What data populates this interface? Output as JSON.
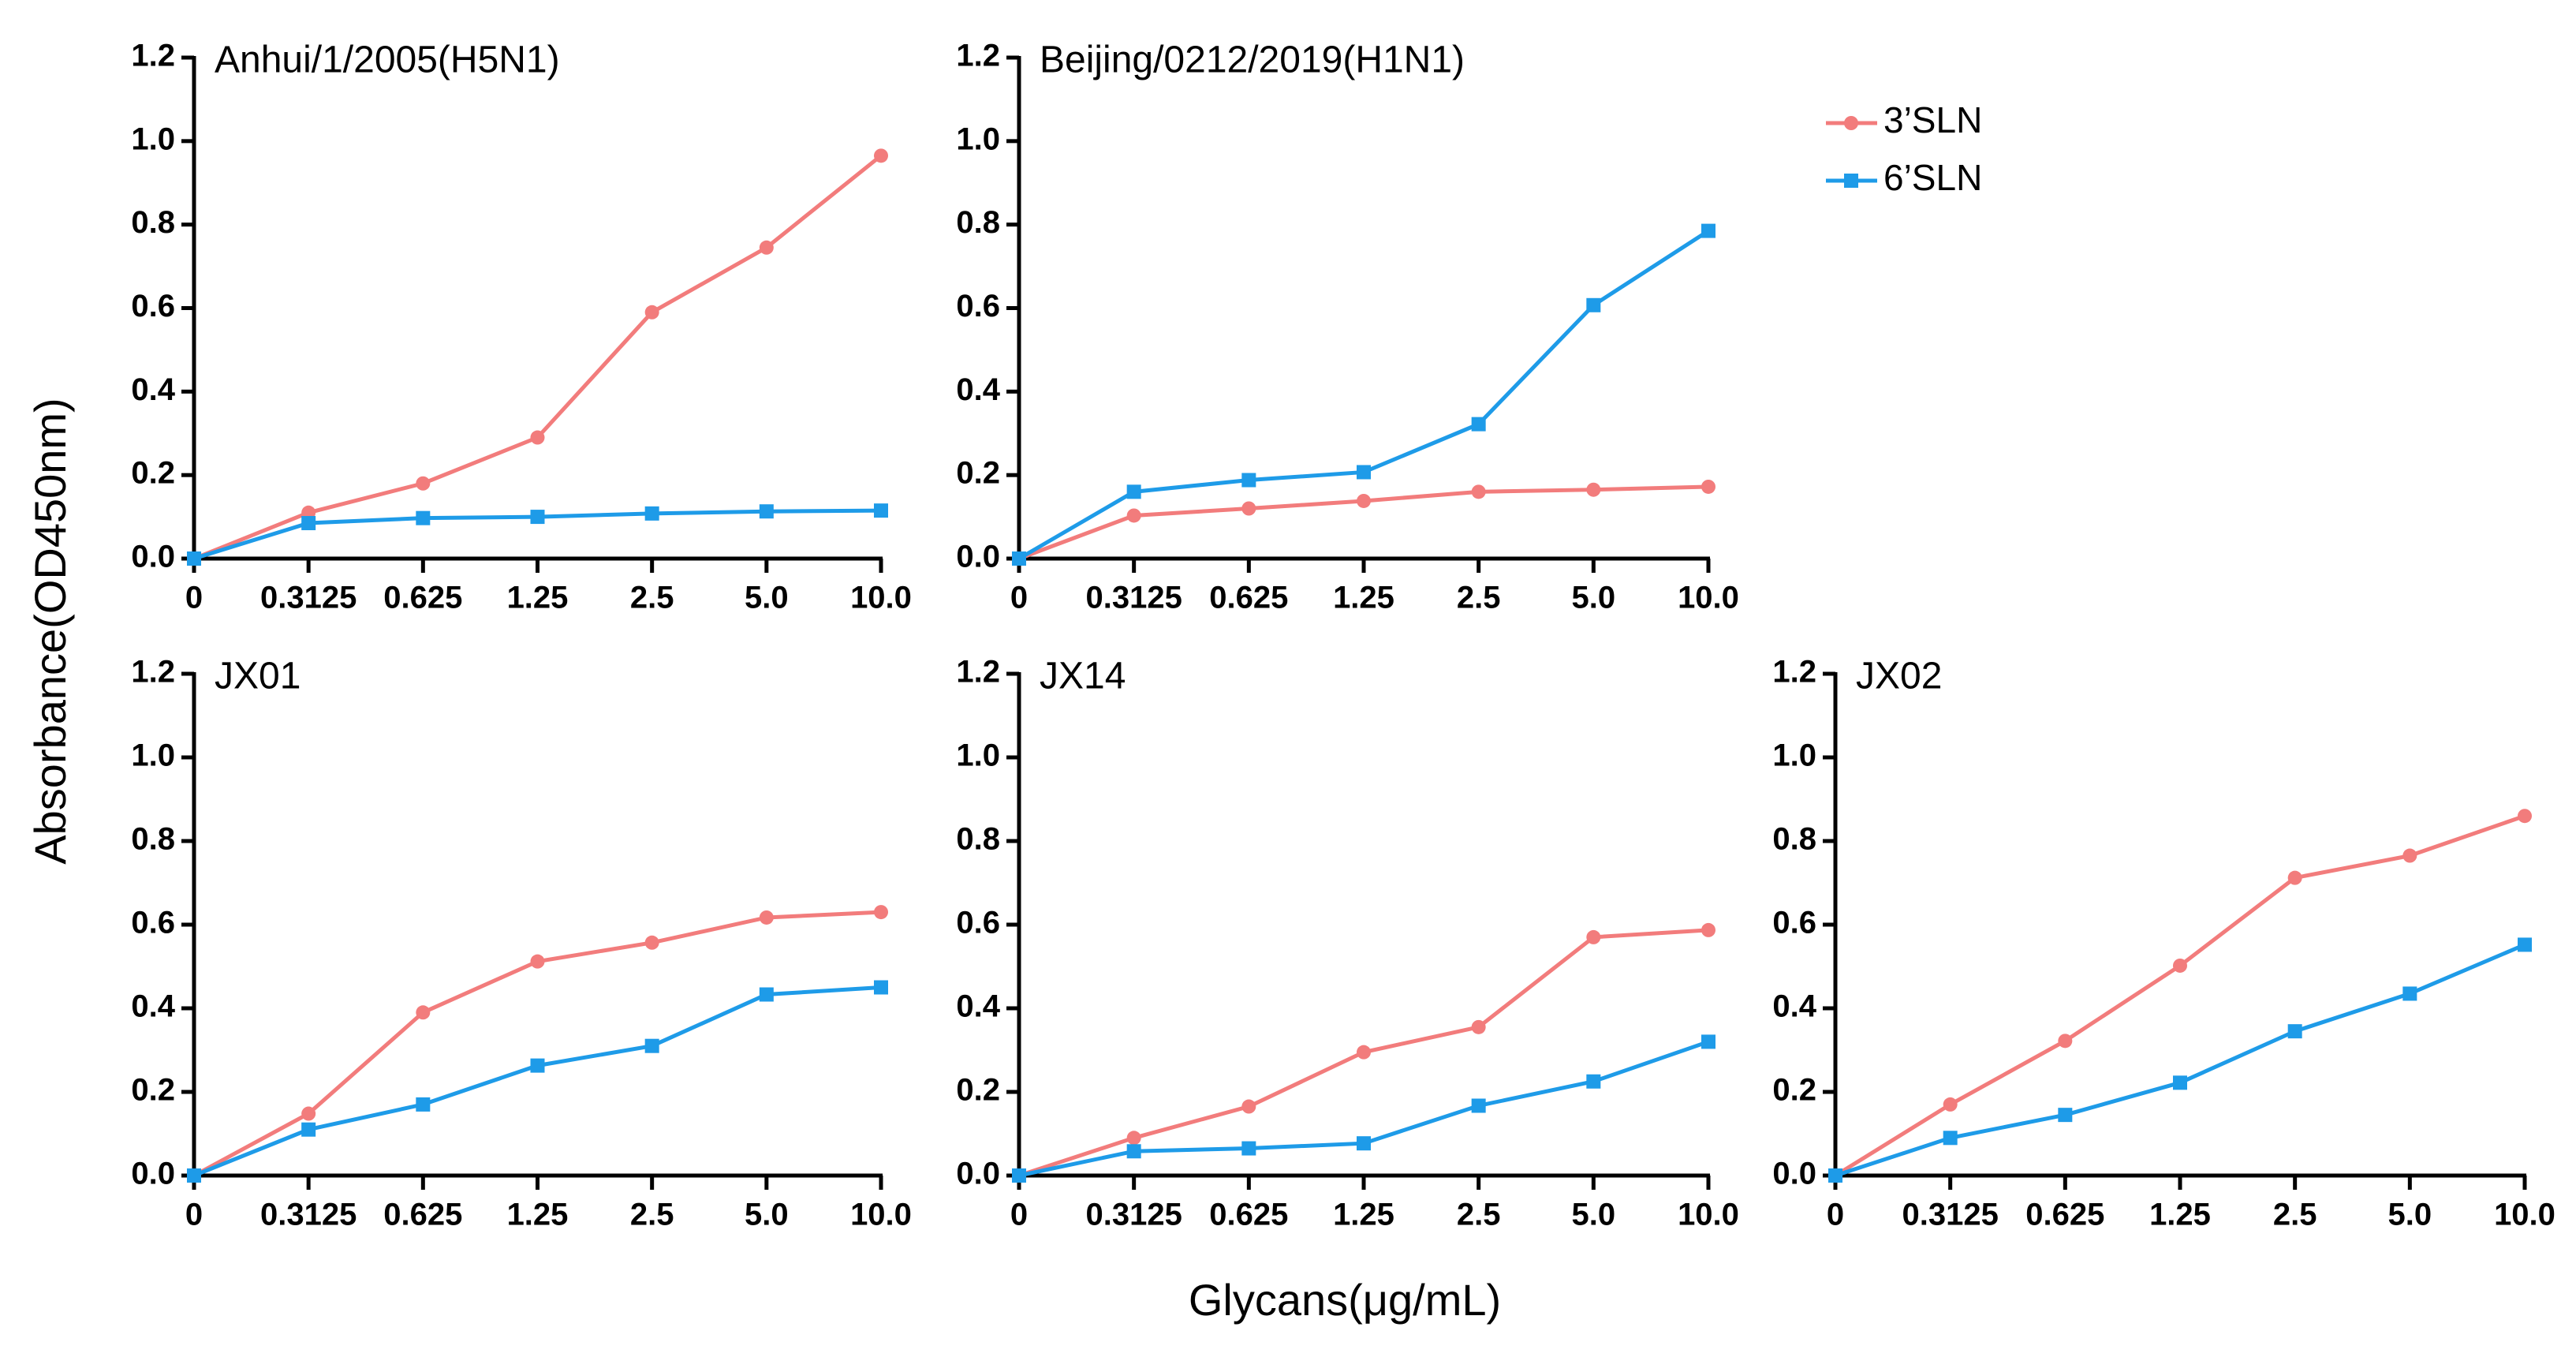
{
  "axis_titles": {
    "y": "Absorbance(OD450nm)",
    "x": "Glycans(μg/mL)"
  },
  "chart_data": [
    {
      "type": "line",
      "title": "Anhui/1/2005(H5N1)",
      "categories": [
        "0",
        "0.3125",
        "0.625",
        "1.25",
        "2.5",
        "5.0",
        "10.0"
      ],
      "series": [
        {
          "name": "3’SLN",
          "color": "#f27c7c",
          "marker": "circle",
          "values": [
            0,
            0.11,
            0.18,
            0.29,
            0.59,
            0.745,
            0.965
          ]
        },
        {
          "name": "6’SLN",
          "color": "#1e9be8",
          "marker": "square",
          "values": [
            0,
            0.085,
            0.097,
            0.1,
            0.108,
            0.113,
            0.115
          ]
        }
      ],
      "ylim": [
        0,
        1.2
      ],
      "yticks": [
        {
          "value": 0,
          "label": "0.0"
        },
        0.2,
        0.4,
        0.6,
        0.8,
        {
          "value": 1,
          "label": "1.0"
        },
        1.2
      ]
    },
    {
      "type": "line",
      "title": "Beijing/0212/2019(H1N1)",
      "categories": [
        "0",
        "0.3125",
        "0.625",
        "1.25",
        "2.5",
        "5.0",
        "10.0"
      ],
      "series": [
        {
          "name": "3’SLN",
          "color": "#f27c7c",
          "marker": "circle",
          "values": [
            0,
            0.103,
            0.12,
            0.138,
            0.16,
            0.165,
            0.172
          ]
        },
        {
          "name": "6’SLN",
          "color": "#1e9be8",
          "marker": "square",
          "values": [
            0,
            0.16,
            0.188,
            0.207,
            0.322,
            0.607,
            0.785
          ]
        }
      ],
      "ylim": [
        0,
        1.2
      ],
      "yticks": [
        {
          "value": 0,
          "label": "0.0"
        },
        0.2,
        0.4,
        0.6,
        0.8,
        {
          "value": 1,
          "label": "1.0"
        },
        1.2
      ]
    },
    {
      "type": "line",
      "title": "JX01",
      "categories": [
        "0",
        "0.3125",
        "0.625",
        "1.25",
        "2.5",
        "5.0",
        "10.0"
      ],
      "series": [
        {
          "name": "3’SLN",
          "color": "#f27c7c",
          "marker": "circle",
          "values": [
            0,
            0.148,
            0.39,
            0.512,
            0.557,
            0.617,
            0.63
          ]
        },
        {
          "name": "6’SLN",
          "color": "#1e9be8",
          "marker": "square",
          "values": [
            0,
            0.11,
            0.17,
            0.263,
            0.31,
            0.433,
            0.45
          ]
        }
      ],
      "ylim": [
        0,
        1.2
      ],
      "yticks": [
        {
          "value": 0,
          "label": "0.0"
        },
        0.2,
        0.4,
        0.6,
        0.8,
        {
          "value": 1,
          "label": "1.0"
        },
        1.2
      ]
    },
    {
      "type": "line",
      "title": "JX14",
      "categories": [
        "0",
        "0.3125",
        "0.625",
        "1.25",
        "2.5",
        "5.0",
        "10.0"
      ],
      "series": [
        {
          "name": "3’SLN",
          "color": "#f27c7c",
          "marker": "circle",
          "values": [
            0,
            0.09,
            0.165,
            0.295,
            0.355,
            0.57,
            0.587
          ]
        },
        {
          "name": "6’SLN",
          "color": "#1e9be8",
          "marker": "square",
          "values": [
            0,
            0.058,
            0.065,
            0.077,
            0.167,
            0.225,
            0.32
          ]
        }
      ],
      "ylim": [
        0,
        1.2
      ],
      "yticks": [
        {
          "value": 0,
          "label": "0.0"
        },
        0.2,
        0.4,
        0.6,
        0.8,
        {
          "value": 1,
          "label": "1.0"
        },
        1.2
      ]
    },
    {
      "type": "line",
      "title": "JX02",
      "categories": [
        "0",
        "0.3125",
        "0.625",
        "1.25",
        "2.5",
        "5.0",
        "10.0"
      ],
      "series": [
        {
          "name": "3’SLN",
          "color": "#f27c7c",
          "marker": "circle",
          "values": [
            0,
            0.17,
            0.322,
            0.502,
            0.712,
            0.765,
            0.86
          ]
        },
        {
          "name": "6’SLN",
          "color": "#1e9be8",
          "marker": "square",
          "values": [
            0,
            0.09,
            0.145,
            0.222,
            0.345,
            0.435,
            0.552
          ]
        }
      ],
      "ylim": [
        0,
        1.2
      ],
      "yticks": [
        {
          "value": 0,
          "label": "0.0"
        },
        0.2,
        0.4,
        0.6,
        0.8,
        {
          "value": 1,
          "label": "1.0"
        },
        1.2
      ]
    }
  ]
}
